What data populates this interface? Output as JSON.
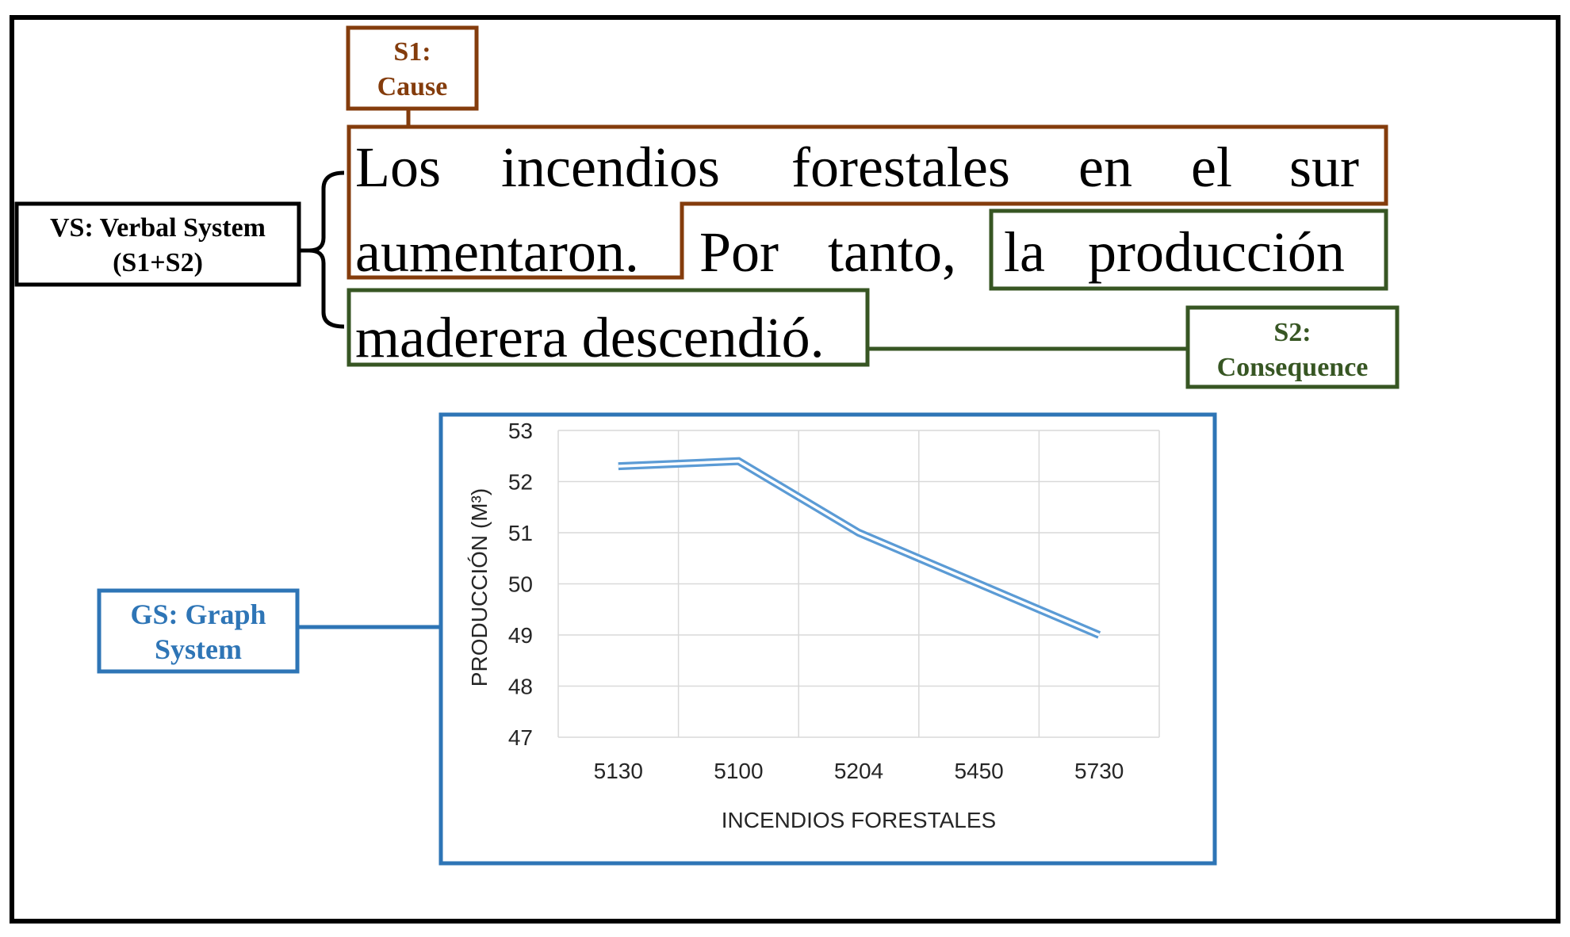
{
  "labels": {
    "s1": [
      "S1:",
      "Cause"
    ],
    "s2": [
      "S2:",
      "Consequence"
    ],
    "vs": [
      "VS: Verbal System",
      "(S1+S2)"
    ],
    "gs": [
      "GS: Graph",
      "System"
    ]
  },
  "sentence": {
    "line1": [
      "Los",
      "incendios",
      "forestales",
      "en",
      "el",
      "sur"
    ],
    "line2": [
      "aumentaron.",
      "Por",
      "tanto,",
      "la",
      "producción"
    ],
    "line3": [
      "maderera descendió."
    ]
  },
  "colors": {
    "cause": "#843C0C",
    "consequence": "#375623",
    "graph": "#2E75B6",
    "line": "#5B9BD5",
    "frame": "#000000"
  },
  "chart_data": {
    "type": "line",
    "categories": [
      "5130",
      "5100",
      "5204",
      "5450",
      "5730"
    ],
    "series": [
      {
        "values": [
          52.3,
          52.4,
          51.0,
          50.0,
          49.0
        ]
      }
    ],
    "xlabel": "INCENDIOS FORESTALES",
    "ylabel": "PRODUCCIÓN (M³)",
    "ylim": [
      47,
      53
    ],
    "yticks": [
      "47",
      "48",
      "49",
      "50",
      "51",
      "52",
      "53"
    ],
    "grid": true
  }
}
